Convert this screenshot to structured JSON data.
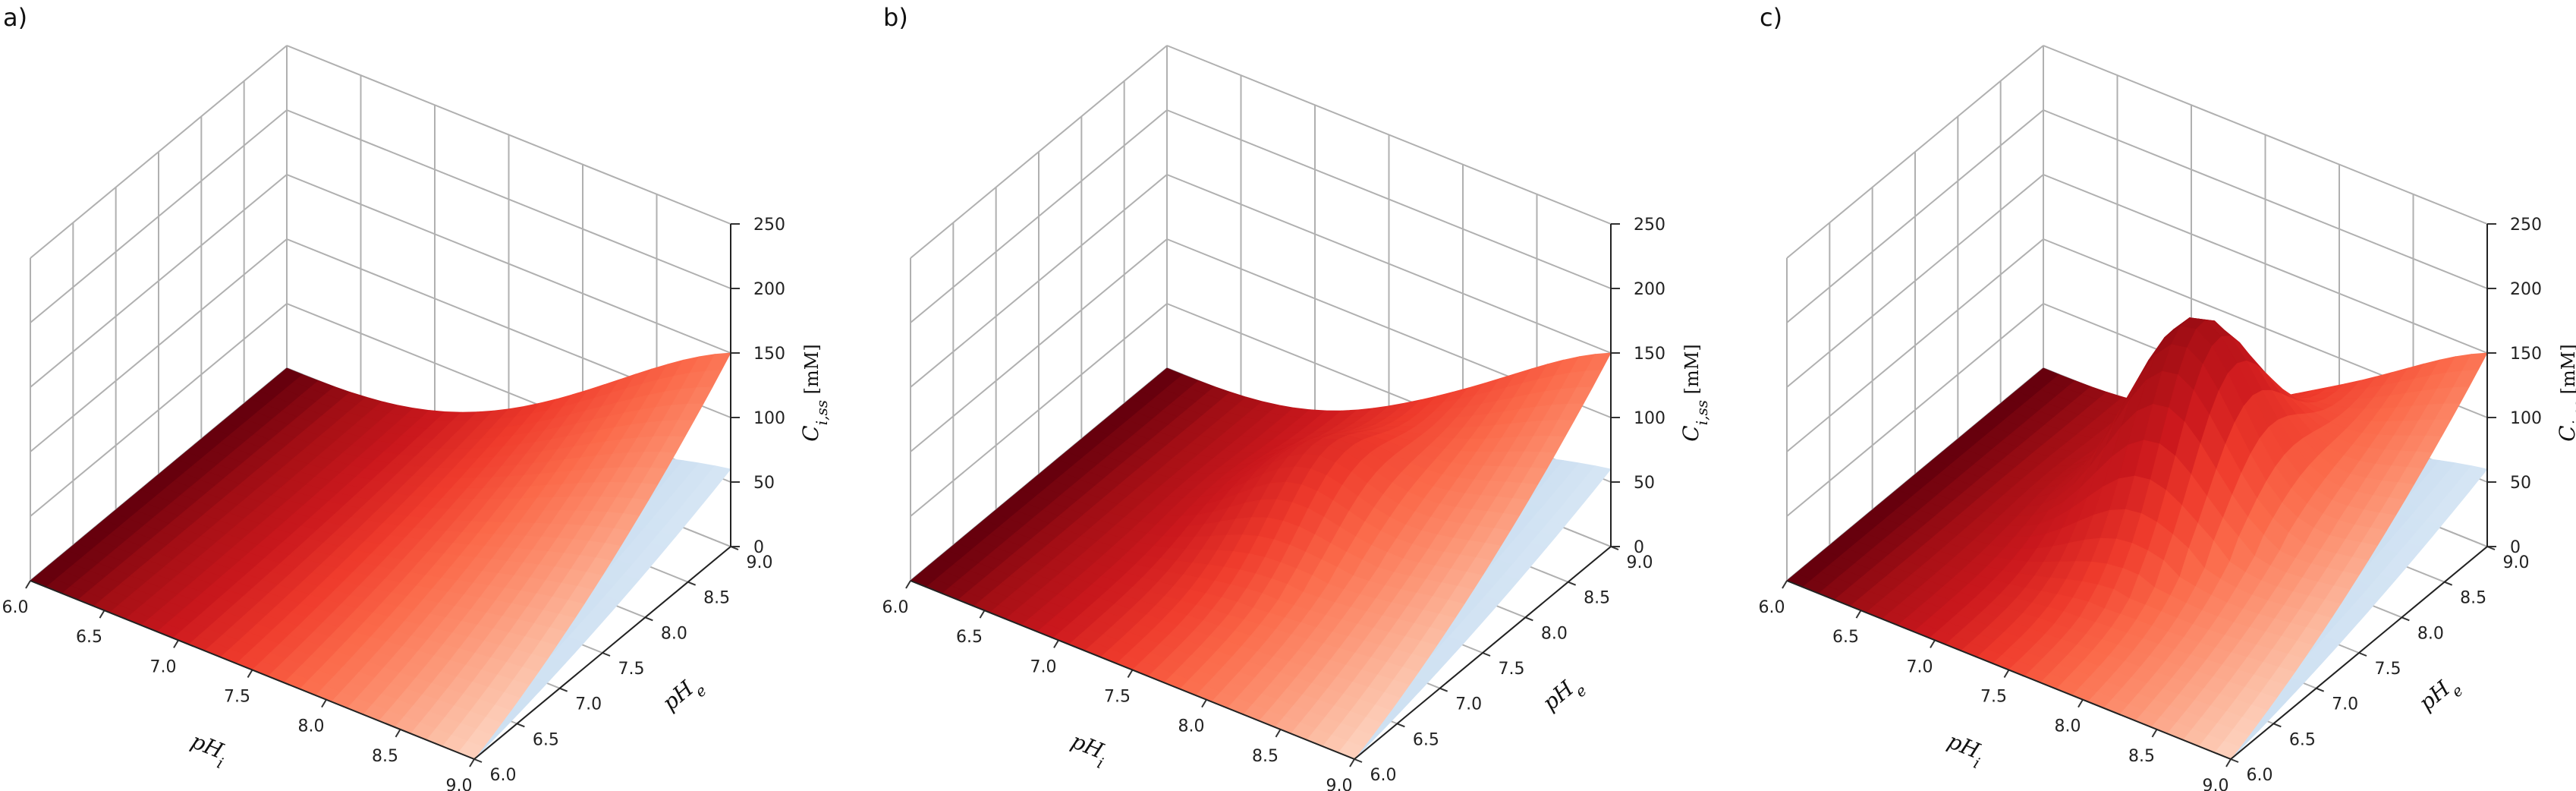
{
  "colors": {
    "red_surface_dark": "#67000d",
    "red_surface_light": "#fff5f0",
    "blue_surface_dark": "#08519c",
    "blue_surface_light": "#f7fbff",
    "grid": "#b0b0b0"
  },
  "chart_data": [
    {
      "type": "surface",
      "panel_label": "a)",
      "xlabel": "pH_i",
      "ylabel": "pH_e",
      "zlabel": "C_{i,ss} [mM]",
      "xlim": [
        6.0,
        9.0
      ],
      "ylim": [
        6.0,
        9.0
      ],
      "zlim": [
        0,
        250
      ],
      "xticks": [
        "6.0",
        "6.5",
        "7.0",
        "7.5",
        "8.0",
        "8.5",
        "9.0"
      ],
      "yticks": [
        "6.0",
        "6.5",
        "7.0",
        "7.5",
        "8.0",
        "8.5",
        "9.0"
      ],
      "zticks": [
        "0",
        "50",
        "100",
        "150",
        "200",
        "250"
      ],
      "grid": true,
      "series": [
        {
          "colormap": "Reds",
          "corner_values": {
            "x6_y6": 0,
            "x9_y6": 0,
            "x6_y9": 0,
            "x9_y9": 150
          },
          "ridge_peak": 0
        },
        {
          "colormap": "Blues",
          "corner_values": {
            "x6_y6": 0,
            "x9_y6": 0,
            "x6_y9": 0,
            "x9_y9": 60
          },
          "ridge_peak": 0
        }
      ]
    },
    {
      "type": "surface",
      "panel_label": "b)",
      "xlabel": "pH_i",
      "ylabel": "pH_e",
      "zlabel": "C_{i,ss} [mM]",
      "xlim": [
        6.0,
        9.0
      ],
      "ylim": [
        6.0,
        9.0
      ],
      "zlim": [
        0,
        250
      ],
      "xticks": [
        "6.0",
        "6.5",
        "7.0",
        "7.5",
        "8.0",
        "8.5",
        "9.0"
      ],
      "yticks": [
        "6.0",
        "6.5",
        "7.0",
        "7.5",
        "8.0",
        "8.5",
        "9.0"
      ],
      "zticks": [
        "0",
        "50",
        "100",
        "150",
        "200",
        "250"
      ],
      "grid": true,
      "series": [
        {
          "colormap": "Reds",
          "corner_values": {
            "x6_y6": 0,
            "x9_y6": 0,
            "x6_y9": 0,
            "x9_y9": 150
          },
          "ridge_peak": 50
        },
        {
          "colormap": "Blues",
          "corner_values": {
            "x6_y6": 0,
            "x9_y6": 0,
            "x6_y9": 0,
            "x9_y9": 60
          },
          "ridge_peak": 20
        }
      ]
    },
    {
      "type": "surface",
      "panel_label": "c)",
      "xlabel": "pH_i",
      "ylabel": "pH_e",
      "zlabel": "C_{i,ss} [mM]",
      "xlim": [
        6.0,
        9.0
      ],
      "ylim": [
        6.0,
        9.0
      ],
      "zlim": [
        0,
        250
      ],
      "xticks": [
        "6.0",
        "6.5",
        "7.0",
        "7.5",
        "8.0",
        "8.5",
        "9.0"
      ],
      "yticks": [
        "6.0",
        "6.5",
        "7.0",
        "7.5",
        "8.0",
        "8.5",
        "9.0"
      ],
      "zticks": [
        "0",
        "50",
        "100",
        "150",
        "200",
        "250"
      ],
      "grid": true,
      "series": [
        {
          "colormap": "Reds",
          "corner_values": {
            "x6_y6": 0,
            "x9_y6": 0,
            "x6_y9": 0,
            "x9_y9": 150
          },
          "ridge_peak": 150
        },
        {
          "colormap": "Blues",
          "corner_values": {
            "x6_y6": 0,
            "x9_y6": 0,
            "x6_y9": 0,
            "x9_y9": 60
          },
          "ridge_peak": 40
        }
      ]
    }
  ]
}
